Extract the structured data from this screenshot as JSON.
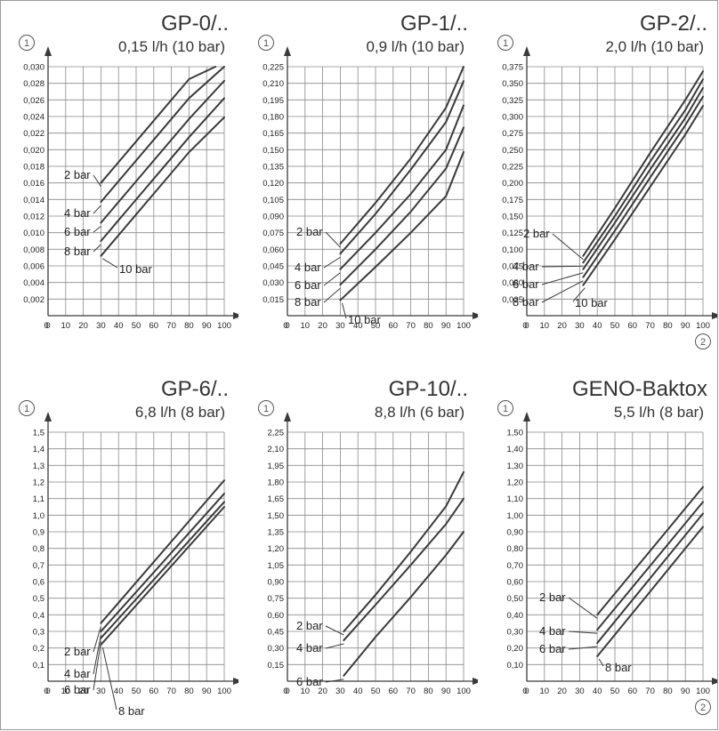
{
  "axis_markers": {
    "y": "1",
    "x": "2"
  },
  "chart_data": [
    {
      "type": "line",
      "title": "GP-0/..",
      "subtitle": "0,15 l/h (10 bar)",
      "decimals": 3,
      "xlim": [
        0,
        100
      ],
      "ylim": [
        0,
        0.03
      ],
      "xticks": [
        0,
        10,
        20,
        30,
        40,
        50,
        60,
        70,
        80,
        90,
        100
      ],
      "yticks": [
        0.002,
        0.004,
        0.006,
        0.008,
        0.01,
        0.012,
        0.014,
        0.016,
        0.018,
        0.02,
        0.022,
        0.024,
        0.026,
        0.028,
        0.03
      ],
      "grid": true,
      "series": [
        {
          "name": "2 bar",
          "x": [
            30,
            48,
            64,
            80,
            95
          ],
          "y": [
            0.016,
            0.0205,
            0.0245,
            0.0285,
            0.03
          ]
        },
        {
          "name": "4 bar",
          "x": [
            30,
            48,
            64,
            80,
            100
          ],
          "y": [
            0.0137,
            0.0182,
            0.0222,
            0.0262,
            0.03
          ]
        },
        {
          "name": "6 bar",
          "x": [
            30,
            48,
            64,
            80,
            100
          ],
          "y": [
            0.0112,
            0.0157,
            0.0197,
            0.0237,
            0.0283
          ]
        },
        {
          "name": "8 bar",
          "x": [
            30,
            48,
            64,
            80,
            100
          ],
          "y": [
            0.009,
            0.0135,
            0.0175,
            0.0215,
            0.0262
          ]
        },
        {
          "name": "10 bar",
          "x": [
            30,
            48,
            64,
            80,
            100
          ],
          "y": [
            0.0072,
            0.0117,
            0.0157,
            0.0197,
            0.0239
          ]
        }
      ]
    },
    {
      "type": "line",
      "title": "GP-1/..",
      "subtitle": "0,9 l/h (10 bar)",
      "decimals": 3,
      "xlim": [
        0,
        100
      ],
      "ylim": [
        0,
        0.225
      ],
      "xticks": [
        0,
        10,
        20,
        30,
        40,
        50,
        60,
        70,
        80,
        90,
        100
      ],
      "yticks": [
        0.015,
        0.03,
        0.045,
        0.06,
        0.075,
        0.09,
        0.105,
        0.12,
        0.135,
        0.15,
        0.165,
        0.18,
        0.195,
        0.21,
        0.225
      ],
      "grid": true,
      "series": [
        {
          "name": "2 bar",
          "x": [
            30,
            50,
            70,
            90,
            100
          ],
          "y": [
            0.065,
            0.102,
            0.142,
            0.188,
            0.225
          ]
        },
        {
          "name": "4 bar",
          "x": [
            30,
            50,
            70,
            90,
            100
          ],
          "y": [
            0.056,
            0.092,
            0.132,
            0.175,
            0.212
          ]
        },
        {
          "name": "6 bar",
          "x": [
            30,
            50,
            70,
            90,
            100
          ],
          "y": [
            0.042,
            0.075,
            0.11,
            0.15,
            0.19
          ]
        },
        {
          "name": "8 bar",
          "x": [
            30,
            50,
            70,
            90,
            100
          ],
          "y": [
            0.028,
            0.06,
            0.094,
            0.133,
            0.17
          ]
        },
        {
          "name": "10 bar",
          "x": [
            30,
            50,
            70,
            90,
            100
          ],
          "y": [
            0.014,
            0.044,
            0.075,
            0.108,
            0.148
          ]
        }
      ]
    },
    {
      "type": "line",
      "title": "GP-2/..",
      "subtitle": "2,0 l/h (10 bar)",
      "decimals": 3,
      "xlim": [
        0,
        100
      ],
      "ylim": [
        0,
        0.375
      ],
      "xticks": [
        0,
        10,
        20,
        30,
        40,
        50,
        60,
        70,
        80,
        90,
        100
      ],
      "yticks": [
        0.025,
        0.05,
        0.075,
        0.1,
        0.125,
        0.15,
        0.175,
        0.2,
        0.225,
        0.25,
        0.275,
        0.3,
        0.325,
        0.35,
        0.375
      ],
      "grid": true,
      "series": [
        {
          "name": "2 bar",
          "x": [
            32,
            50,
            70,
            90,
            100
          ],
          "y": [
            0.09,
            0.162,
            0.245,
            0.325,
            0.368
          ]
        },
        {
          "name": "4 bar",
          "x": [
            32,
            50,
            70,
            90,
            100
          ],
          "y": [
            0.08,
            0.15,
            0.232,
            0.31,
            0.356
          ]
        },
        {
          "name": "6 bar",
          "x": [
            32,
            50,
            70,
            90,
            100
          ],
          "y": [
            0.07,
            0.14,
            0.22,
            0.298,
            0.343
          ]
        },
        {
          "name": "8 bar",
          "x": [
            32,
            50,
            70,
            90,
            100
          ],
          "y": [
            0.058,
            0.128,
            0.208,
            0.287,
            0.33
          ]
        },
        {
          "name": "10 bar",
          "x": [
            32,
            50,
            70,
            90,
            100
          ],
          "y": [
            0.046,
            0.115,
            0.194,
            0.273,
            0.316
          ]
        }
      ]
    },
    {
      "type": "line",
      "title": "GP-6/..",
      "subtitle": "6,8 l/h (8 bar)",
      "decimals": 1,
      "xlim": [
        0,
        100
      ],
      "ylim": [
        0,
        1.5
      ],
      "xticks": [
        0,
        10,
        20,
        30,
        40,
        50,
        60,
        70,
        80,
        90,
        100
      ],
      "yticks": [
        0.1,
        0.2,
        0.3,
        0.4,
        0.5,
        0.6,
        0.7,
        0.8,
        0.9,
        1.0,
        1.1,
        1.2,
        1.3,
        1.4,
        1.5
      ],
      "grid": true,
      "series": [
        {
          "name": "2 bar",
          "x": [
            30,
            100
          ],
          "y": [
            0.35,
            1.21
          ]
        },
        {
          "name": "4 bar",
          "x": [
            30,
            100
          ],
          "y": [
            0.3,
            1.13
          ]
        },
        {
          "name": "6 bar",
          "x": [
            30,
            100
          ],
          "y": [
            0.26,
            1.08
          ]
        },
        {
          "name": "8 bar",
          "x": [
            30,
            100
          ],
          "y": [
            0.22,
            1.05
          ]
        }
      ]
    },
    {
      "type": "line",
      "title": "GP-10/..",
      "subtitle": "8,8 l/h (6 bar)",
      "decimals": 2,
      "xlim": [
        0,
        100
      ],
      "ylim": [
        0,
        2.25
      ],
      "xticks": [
        0,
        10,
        20,
        30,
        40,
        50,
        60,
        70,
        80,
        90,
        100
      ],
      "yticks": [
        0.15,
        0.3,
        0.45,
        0.6,
        0.75,
        0.9,
        1.05,
        1.2,
        1.35,
        1.5,
        1.65,
        1.8,
        1.95,
        2.1,
        2.25
      ],
      "grid": true,
      "series": [
        {
          "name": "2 bar",
          "x": [
            32,
            50,
            70,
            90,
            100
          ],
          "y": [
            0.45,
            0.78,
            1.17,
            1.58,
            1.89
          ]
        },
        {
          "name": "4 bar",
          "x": [
            32,
            50,
            70,
            90,
            100
          ],
          "y": [
            0.37,
            0.69,
            1.05,
            1.42,
            1.65
          ]
        },
        {
          "name": "6 bar",
          "x": [
            32,
            50,
            70,
            90,
            100
          ],
          "y": [
            0.05,
            0.4,
            0.76,
            1.14,
            1.35
          ]
        }
      ]
    },
    {
      "type": "line",
      "title": "GENO-Baktox",
      "subtitle": "5,5 l/h (8 bar)",
      "decimals": 2,
      "xlim": [
        0,
        100
      ],
      "ylim": [
        0,
        1.5
      ],
      "xticks": [
        0,
        10,
        20,
        30,
        40,
        50,
        60,
        70,
        80,
        90,
        100
      ],
      "yticks": [
        0.1,
        0.2,
        0.3,
        0.4,
        0.5,
        0.6,
        0.7,
        0.8,
        0.9,
        1.0,
        1.1,
        1.2,
        1.3,
        1.4,
        1.5
      ],
      "grid": true,
      "series": [
        {
          "name": "2 bar",
          "x": [
            40,
            100
          ],
          "y": [
            0.4,
            1.17
          ]
        },
        {
          "name": "4 bar",
          "x": [
            40,
            100
          ],
          "y": [
            0.31,
            1.08
          ]
        },
        {
          "name": "6 bar",
          "x": [
            40,
            100
          ],
          "y": [
            0.23,
            1.01
          ]
        },
        {
          "name": "8 bar",
          "x": [
            40,
            100
          ],
          "y": [
            0.15,
            0.93
          ]
        }
      ]
    }
  ]
}
